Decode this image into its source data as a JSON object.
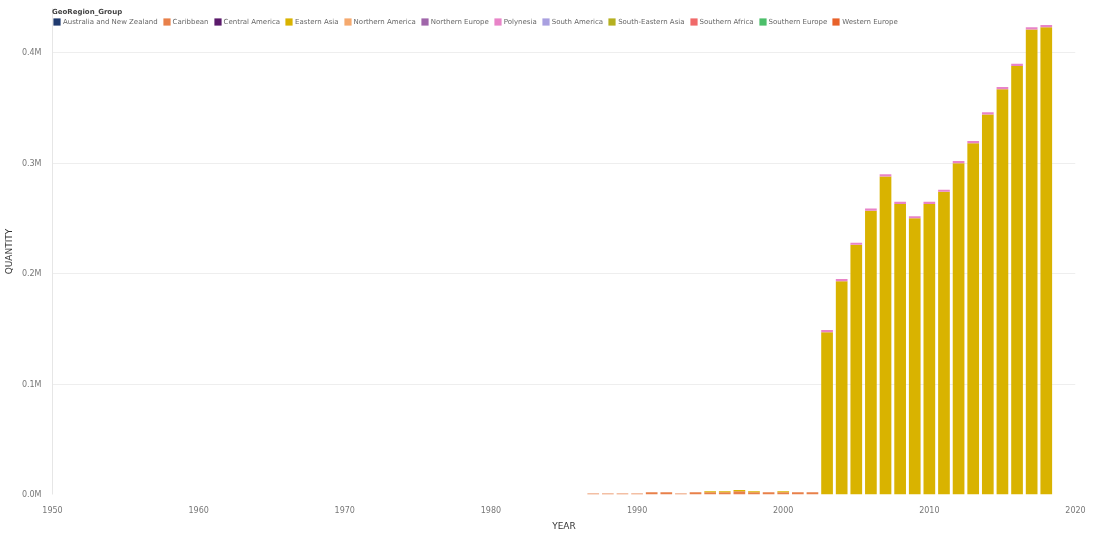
{
  "chart_data": {
    "type": "bar",
    "stacked": true,
    "xlabel": "YEAR",
    "ylabel": "QUANTITY",
    "legend_title": "GeoRegion_Group",
    "legend": "top left",
    "grid": "y",
    "x": [
      1987,
      1988,
      1989,
      1990,
      1991,
      1992,
      1993,
      1994,
      1995,
      1996,
      1997,
      1998,
      1999,
      2000,
      2001,
      2002,
      2003,
      2004,
      2005,
      2006,
      2007,
      2008,
      2009,
      2010,
      2011,
      2012,
      2013,
      2014,
      2015,
      2016,
      2017,
      2018
    ],
    "xlim": [
      1950,
      2020
    ],
    "xticks": [
      1950,
      1960,
      1970,
      1980,
      1990,
      2000,
      2010,
      2020
    ],
    "ylim": [
      0,
      440000
    ],
    "yticks": [
      {
        "value": 0,
        "label": "0.0M"
      },
      {
        "value": 100000,
        "label": "0.1M"
      },
      {
        "value": 200000,
        "label": "0.2M"
      },
      {
        "value": 300000,
        "label": "0.3M"
      },
      {
        "value": 400000,
        "label": "0.4M"
      }
    ],
    "series": [
      {
        "name": "Australia and New Zealand",
        "color": "#1f3a6e",
        "values": [
          null,
          null,
          null,
          null,
          null,
          null,
          null,
          null,
          null,
          null,
          null,
          null,
          null,
          null,
          null,
          null,
          null,
          null,
          null,
          null,
          null,
          null,
          null,
          null,
          null,
          null,
          null,
          null,
          null,
          null,
          null,
          null
        ]
      },
      {
        "name": "Caribbean",
        "color": "#e8804a",
        "values": [
          1000,
          1000,
          1000,
          1000,
          2000,
          2000,
          1000,
          2000,
          2000,
          2000,
          3000,
          2000,
          2000,
          2000,
          2000,
          2000,
          null,
          null,
          null,
          null,
          null,
          null,
          null,
          null,
          null,
          null,
          null,
          null,
          null,
          null,
          null,
          null
        ]
      },
      {
        "name": "Central America",
        "color": "#5b1a6b",
        "values": [
          null,
          null,
          null,
          null,
          null,
          null,
          null,
          null,
          null,
          null,
          null,
          null,
          null,
          null,
          null,
          null,
          null,
          null,
          null,
          null,
          null,
          null,
          null,
          null,
          null,
          null,
          null,
          null,
          null,
          null,
          null,
          null
        ]
      },
      {
        "name": "Eastern Asia",
        "color": "#d9b300",
        "values": [
          null,
          null,
          null,
          null,
          null,
          null,
          null,
          null,
          1000,
          1000,
          1000,
          1000,
          null,
          1000,
          null,
          null,
          147000,
          193000,
          226000,
          257000,
          288000,
          263000,
          250000,
          263000,
          274000,
          300000,
          318000,
          344000,
          367000,
          388000,
          421000,
          423000
        ]
      },
      {
        "name": "Northern America",
        "color": "#f5a96e",
        "values": [
          null,
          null,
          null,
          null,
          null,
          null,
          null,
          null,
          null,
          null,
          null,
          null,
          null,
          null,
          null,
          null,
          null,
          null,
          null,
          null,
          null,
          null,
          null,
          null,
          null,
          null,
          null,
          null,
          null,
          null,
          null,
          null
        ]
      },
      {
        "name": "Northern Europe",
        "color": "#a066aa",
        "values": [
          null,
          null,
          null,
          null,
          null,
          null,
          null,
          null,
          null,
          null,
          null,
          null,
          null,
          null,
          null,
          null,
          null,
          null,
          null,
          null,
          null,
          null,
          null,
          null,
          null,
          null,
          null,
          null,
          null,
          null,
          null,
          null
        ]
      },
      {
        "name": "Polynesia",
        "color": "#e884c8",
        "values": [
          null,
          null,
          null,
          null,
          null,
          null,
          null,
          null,
          null,
          null,
          null,
          null,
          null,
          null,
          null,
          null,
          2000,
          2000,
          2000,
          2000,
          2000,
          2000,
          2000,
          2000,
          2000,
          2000,
          2000,
          2000,
          2000,
          2000,
          2000,
          2000
        ]
      },
      {
        "name": "South America",
        "color": "#a9a0e0",
        "values": [
          null,
          null,
          null,
          null,
          null,
          null,
          null,
          null,
          null,
          null,
          null,
          null,
          null,
          null,
          null,
          null,
          null,
          null,
          null,
          null,
          null,
          null,
          null,
          null,
          null,
          null,
          null,
          null,
          null,
          null,
          null,
          null
        ]
      },
      {
        "name": "South-Eastern Asia",
        "color": "#b5b020",
        "values": [
          null,
          null,
          null,
          null,
          null,
          null,
          null,
          null,
          null,
          null,
          null,
          null,
          null,
          null,
          null,
          null,
          null,
          null,
          null,
          null,
          null,
          null,
          null,
          null,
          null,
          null,
          null,
          null,
          null,
          null,
          null,
          null
        ]
      },
      {
        "name": "Southern Africa",
        "color": "#f06a6a",
        "values": [
          null,
          null,
          null,
          null,
          null,
          null,
          null,
          null,
          null,
          null,
          null,
          null,
          null,
          null,
          null,
          null,
          null,
          null,
          null,
          null,
          null,
          null,
          null,
          null,
          null,
          null,
          null,
          null,
          null,
          null,
          null,
          null
        ]
      },
      {
        "name": "Southern Europe",
        "color": "#4cbf6a",
        "values": [
          null,
          null,
          null,
          null,
          null,
          null,
          null,
          null,
          null,
          null,
          null,
          null,
          null,
          null,
          null,
          null,
          null,
          null,
          null,
          null,
          null,
          null,
          null,
          null,
          null,
          null,
          null,
          null,
          null,
          null,
          null,
          null
        ]
      },
      {
        "name": "Western Europe",
        "color": "#e8622a",
        "values": [
          null,
          null,
          null,
          null,
          null,
          null,
          null,
          null,
          null,
          null,
          null,
          null,
          null,
          null,
          null,
          null,
          null,
          null,
          null,
          null,
          null,
          null,
          null,
          null,
          null,
          null,
          null,
          null,
          null,
          null,
          null,
          null
        ]
      }
    ]
  }
}
